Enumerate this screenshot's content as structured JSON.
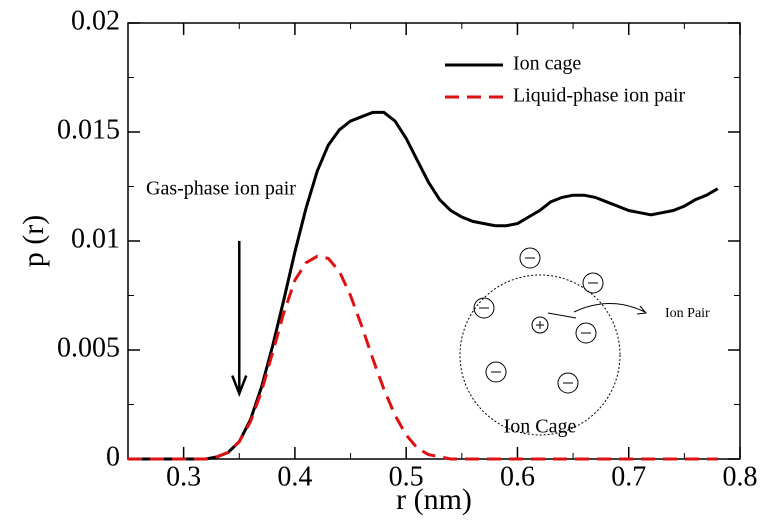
{
  "chart_data": {
    "type": "line",
    "xlabel": "r (nm)",
    "ylabel": "p (r)",
    "xlim": [
      0.25,
      0.8
    ],
    "ylim": [
      0,
      0.02
    ],
    "xticks": [
      0.3,
      0.4,
      0.5,
      0.6,
      0.7,
      0.8
    ],
    "yticks": [
      0,
      0.005,
      0.01,
      0.015,
      0.02
    ],
    "legend": "upper right",
    "x": [
      0.25,
      0.26,
      0.27,
      0.28,
      0.29,
      0.3,
      0.31,
      0.32,
      0.33,
      0.34,
      0.35,
      0.36,
      0.37,
      0.38,
      0.39,
      0.4,
      0.41,
      0.42,
      0.43,
      0.44,
      0.45,
      0.46,
      0.47,
      0.48,
      0.49,
      0.5,
      0.51,
      0.52,
      0.53,
      0.54,
      0.55,
      0.56,
      0.57,
      0.58,
      0.59,
      0.6,
      0.61,
      0.62,
      0.63,
      0.64,
      0.65,
      0.66,
      0.67,
      0.68,
      0.69,
      0.7,
      0.71,
      0.72,
      0.73,
      0.74,
      0.75,
      0.76,
      0.77,
      0.78
    ],
    "series": [
      {
        "name": "Ion cage",
        "color": "#000000",
        "dash": "solid",
        "values": [
          0,
          0,
          0,
          0,
          0,
          0,
          0,
          0,
          0.0001,
          0.0003,
          0.0008,
          0.0018,
          0.0033,
          0.0052,
          0.0073,
          0.0095,
          0.0115,
          0.0132,
          0.0144,
          0.0151,
          0.0155,
          0.0157,
          0.0159,
          0.0159,
          0.0155,
          0.0147,
          0.0137,
          0.0127,
          0.0119,
          0.0114,
          0.0111,
          0.0109,
          0.0108,
          0.0107,
          0.0107,
          0.0108,
          0.0111,
          0.0114,
          0.0118,
          0.012,
          0.0121,
          0.0121,
          0.012,
          0.0118,
          0.0116,
          0.0114,
          0.0113,
          0.0112,
          0.0113,
          0.0114,
          0.0116,
          0.0119,
          0.0121,
          0.0124
        ]
      },
      {
        "name": "Liquid-phase ion pair",
        "color": "#dd1111",
        "dash": "dashed",
        "values": [
          0,
          0,
          0,
          0,
          0,
          0,
          0,
          0,
          0.0001,
          0.0003,
          0.0008,
          0.0017,
          0.0031,
          0.0049,
          0.0067,
          0.0082,
          0.009,
          0.0093,
          0.0092,
          0.0086,
          0.0075,
          0.0061,
          0.0046,
          0.0032,
          0.002,
          0.0011,
          0.0005,
          0.0002,
          0.0001,
          0,
          0,
          0,
          0,
          0,
          0,
          0,
          0,
          0,
          0,
          0,
          0,
          0,
          0,
          0,
          0,
          0,
          0,
          0,
          0,
          0,
          0,
          0,
          0,
          0
        ]
      }
    ],
    "annotations": [
      {
        "text": "Gas-phase ion pair",
        "arrow_x": 0.35,
        "arrow_from": 0.01,
        "arrow_to": 0.003
      },
      {
        "text": "Ion Pair"
      },
      {
        "text": "Ion Cage"
      }
    ]
  }
}
